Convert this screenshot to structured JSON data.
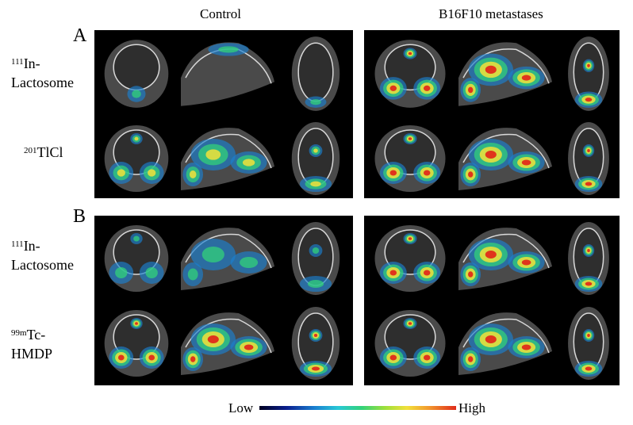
{
  "column_titles": {
    "control": "Control",
    "metastases": "B16F10 metastases"
  },
  "panels": [
    {
      "letter": "A",
      "rows": [
        {
          "isotope": "111",
          "label_line1": "In-",
          "label_line2": "Lactosome"
        },
        {
          "isotope": "201",
          "label_line1": "TlCl",
          "label_line2": ""
        }
      ]
    },
    {
      "letter": "B",
      "rows": [
        {
          "isotope": "111",
          "label_line1": "In-",
          "label_line2": "Lactosome"
        },
        {
          "isotope": "99m",
          "label_line1": "Tc-",
          "label_line2": "HMDP"
        }
      ]
    }
  ],
  "legend": {
    "low": "Low",
    "high": "High"
  },
  "colors": {
    "panel_bg": "#000000",
    "cold": "#1a7fd0",
    "mid": "#33d27a",
    "warm": "#f2e03a",
    "hot": "#e02b1a"
  }
}
